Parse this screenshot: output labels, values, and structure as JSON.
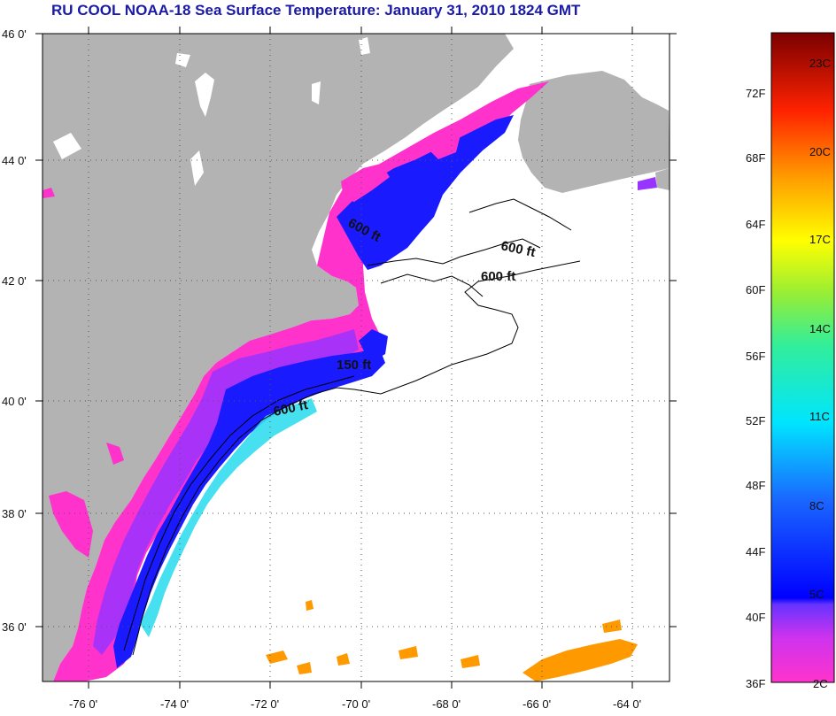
{
  "title": "RU COOL  NOAA-18  Sea Surface Temperature:  January 31, 2010 1824 GMT",
  "map": {
    "lat_labels": [
      "46 0'",
      "44 0'",
      "42 0'",
      "40 0'",
      "38 0'",
      "36 0'"
    ],
    "lon_labels": [
      "-76 0'",
      "-74 0'",
      "-72 0'",
      "-70 0'",
      "-68 0'",
      "-66 0'",
      "-64 0'"
    ],
    "contour_labels": [
      "600 ft",
      "600 ft",
      "600 ft",
      "150 ft",
      "600 ft"
    ],
    "colors": {
      "land": "#b3b3b3",
      "ocean_nodata": "#ffffff",
      "cold_magenta": "#ff33cc",
      "purple": "#9933ff",
      "blue": "#1a1aff",
      "cyan": "#33ddee",
      "warm_orange": "#ff9900"
    }
  },
  "colorbar": {
    "fahrenheit_labels": [
      "72F",
      "68F",
      "64F",
      "60F",
      "56F",
      "52F",
      "48F",
      "44F",
      "40F",
      "36F"
    ],
    "celsius_labels": [
      "23C",
      "20C",
      "17C",
      "14C",
      "11C",
      "8C",
      "5C",
      "2C"
    ]
  }
}
